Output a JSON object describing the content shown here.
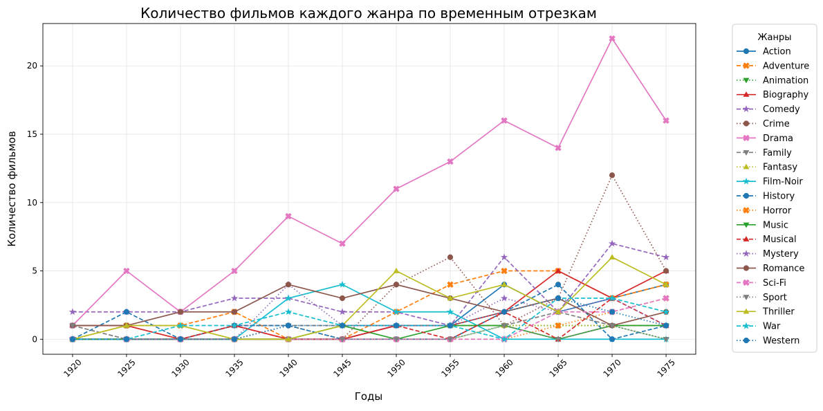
{
  "chart_data": {
    "type": "line",
    "title": "Количество фильмов каждого жанра по временным отрезкам",
    "xlabel": "Годы",
    "ylabel": "Количество фильмов",
    "x": [
      1920,
      1925,
      1930,
      1935,
      1940,
      1945,
      1950,
      1955,
      1960,
      1965,
      1970,
      1975
    ],
    "xlim": [
      1917.25,
      1977.75
    ],
    "ylim": [
      -1.1,
      23.1
    ],
    "y_ticks": [
      0,
      5,
      10,
      15,
      20
    ],
    "grid": true,
    "legend_title": "Жанры",
    "legend_position": "outside-right",
    "series": [
      {
        "name": "Action",
        "color": "#1f77b4",
        "dash": "solid",
        "marker": "circle",
        "values": [
          0,
          0,
          0,
          0,
          0,
          0,
          1,
          1,
          4,
          2,
          3,
          4
        ]
      },
      {
        "name": "Adventure",
        "color": "#ff7f0e",
        "dash": "dashed",
        "marker": "x",
        "values": [
          0,
          1,
          1,
          2,
          0,
          0,
          2,
          4,
          5,
          5,
          3,
          4
        ]
      },
      {
        "name": "Animation",
        "color": "#2ca02c",
        "dash": "dotted",
        "marker": "tri-down",
        "values": [
          0,
          0,
          0,
          0,
          0,
          0,
          0,
          0,
          1,
          1,
          1,
          0
        ]
      },
      {
        "name": "Biography",
        "color": "#d62728",
        "dash": "solid",
        "marker": "tri-up",
        "values": [
          1,
          1,
          0,
          1,
          0,
          0,
          1,
          1,
          2,
          5,
          3,
          5
        ]
      },
      {
        "name": "Comedy",
        "color": "#9467bd",
        "dash": "dashed",
        "marker": "star",
        "values": [
          2,
          2,
          2,
          3,
          3,
          2,
          2,
          1,
          6,
          2,
          7,
          6
        ]
      },
      {
        "name": "Crime",
        "color": "#8c564b",
        "dash": "dotted",
        "marker": "circle",
        "values": [
          0,
          0,
          0,
          0,
          1,
          0,
          4,
          6,
          1,
          3,
          12,
          5
        ]
      },
      {
        "name": "Drama",
        "color": "#e377c2",
        "dash": "solid",
        "marker": "x",
        "values": [
          1,
          5,
          2,
          5,
          9,
          7,
          11,
          13,
          16,
          14,
          22,
          16
        ]
      },
      {
        "name": "Family",
        "color": "#7f7f7f",
        "dash": "dashed",
        "marker": "tri-down",
        "values": [
          1,
          0,
          0,
          1,
          1,
          1,
          1,
          1,
          1,
          2,
          1,
          1
        ]
      },
      {
        "name": "Fantasy",
        "color": "#bcbd22",
        "dash": "dotted",
        "marker": "tri-up",
        "values": [
          0,
          1,
          1,
          0,
          0,
          1,
          1,
          1,
          1,
          1,
          1,
          1
        ]
      },
      {
        "name": "Film-Noir",
        "color": "#17becf",
        "dash": "solid",
        "marker": "star",
        "values": [
          0,
          0,
          0,
          0,
          3,
          4,
          2,
          2,
          0,
          0,
          0,
          0
        ]
      },
      {
        "name": "History",
        "color": "#1f77b4",
        "dash": "dashed",
        "marker": "circle",
        "values": [
          0,
          2,
          0,
          1,
          1,
          0,
          0,
          0,
          2,
          4,
          0,
          1
        ]
      },
      {
        "name": "Horror",
        "color": "#ff7f0e",
        "dash": "dotted",
        "marker": "x",
        "values": [
          0,
          0,
          0,
          0,
          0,
          0,
          0,
          0,
          0,
          1,
          2,
          3
        ]
      },
      {
        "name": "Music",
        "color": "#2ca02c",
        "dash": "solid",
        "marker": "tri-down",
        "values": [
          0,
          0,
          0,
          0,
          0,
          1,
          0,
          1,
          1,
          0,
          1,
          1
        ]
      },
      {
        "name": "Musical",
        "color": "#d62728",
        "dash": "dashed",
        "marker": "tri-up",
        "values": [
          0,
          0,
          0,
          1,
          0,
          0,
          1,
          0,
          2,
          0,
          3,
          1
        ]
      },
      {
        "name": "Mystery",
        "color": "#9467bd",
        "dash": "dotted",
        "marker": "star",
        "values": [
          0,
          0,
          0,
          0,
          4,
          1,
          1,
          1,
          3,
          2,
          3,
          1
        ]
      },
      {
        "name": "Romance",
        "color": "#8c564b",
        "dash": "solid",
        "marker": "circle",
        "values": [
          1,
          1,
          2,
          2,
          4,
          3,
          4,
          3,
          2,
          3,
          1,
          2
        ]
      },
      {
        "name": "Sci-Fi",
        "color": "#e377c2",
        "dash": "dashed",
        "marker": "x",
        "values": [
          0,
          0,
          0,
          0,
          0,
          0,
          0,
          0,
          0,
          2,
          2,
          3
        ]
      },
      {
        "name": "Sport",
        "color": "#7f7f7f",
        "dash": "dotted",
        "marker": "tri-down",
        "values": [
          1,
          0,
          0,
          0,
          0,
          0,
          0,
          0,
          1,
          0,
          1,
          0
        ]
      },
      {
        "name": "Thriller",
        "color": "#bcbd22",
        "dash": "solid",
        "marker": "tri-up",
        "values": [
          0,
          1,
          1,
          0,
          0,
          1,
          5,
          3,
          4,
          2,
          6,
          4
        ]
      },
      {
        "name": "War",
        "color": "#17becf",
        "dash": "dashed",
        "marker": "star",
        "values": [
          0,
          0,
          1,
          1,
          2,
          1,
          1,
          1,
          0,
          3,
          3,
          2
        ]
      },
      {
        "name": "Western",
        "color": "#1f77b4",
        "dash": "dotted",
        "marker": "circle",
        "values": [
          0,
          0,
          0,
          0,
          1,
          1,
          1,
          1,
          2,
          3,
          2,
          1
        ]
      }
    ]
  }
}
